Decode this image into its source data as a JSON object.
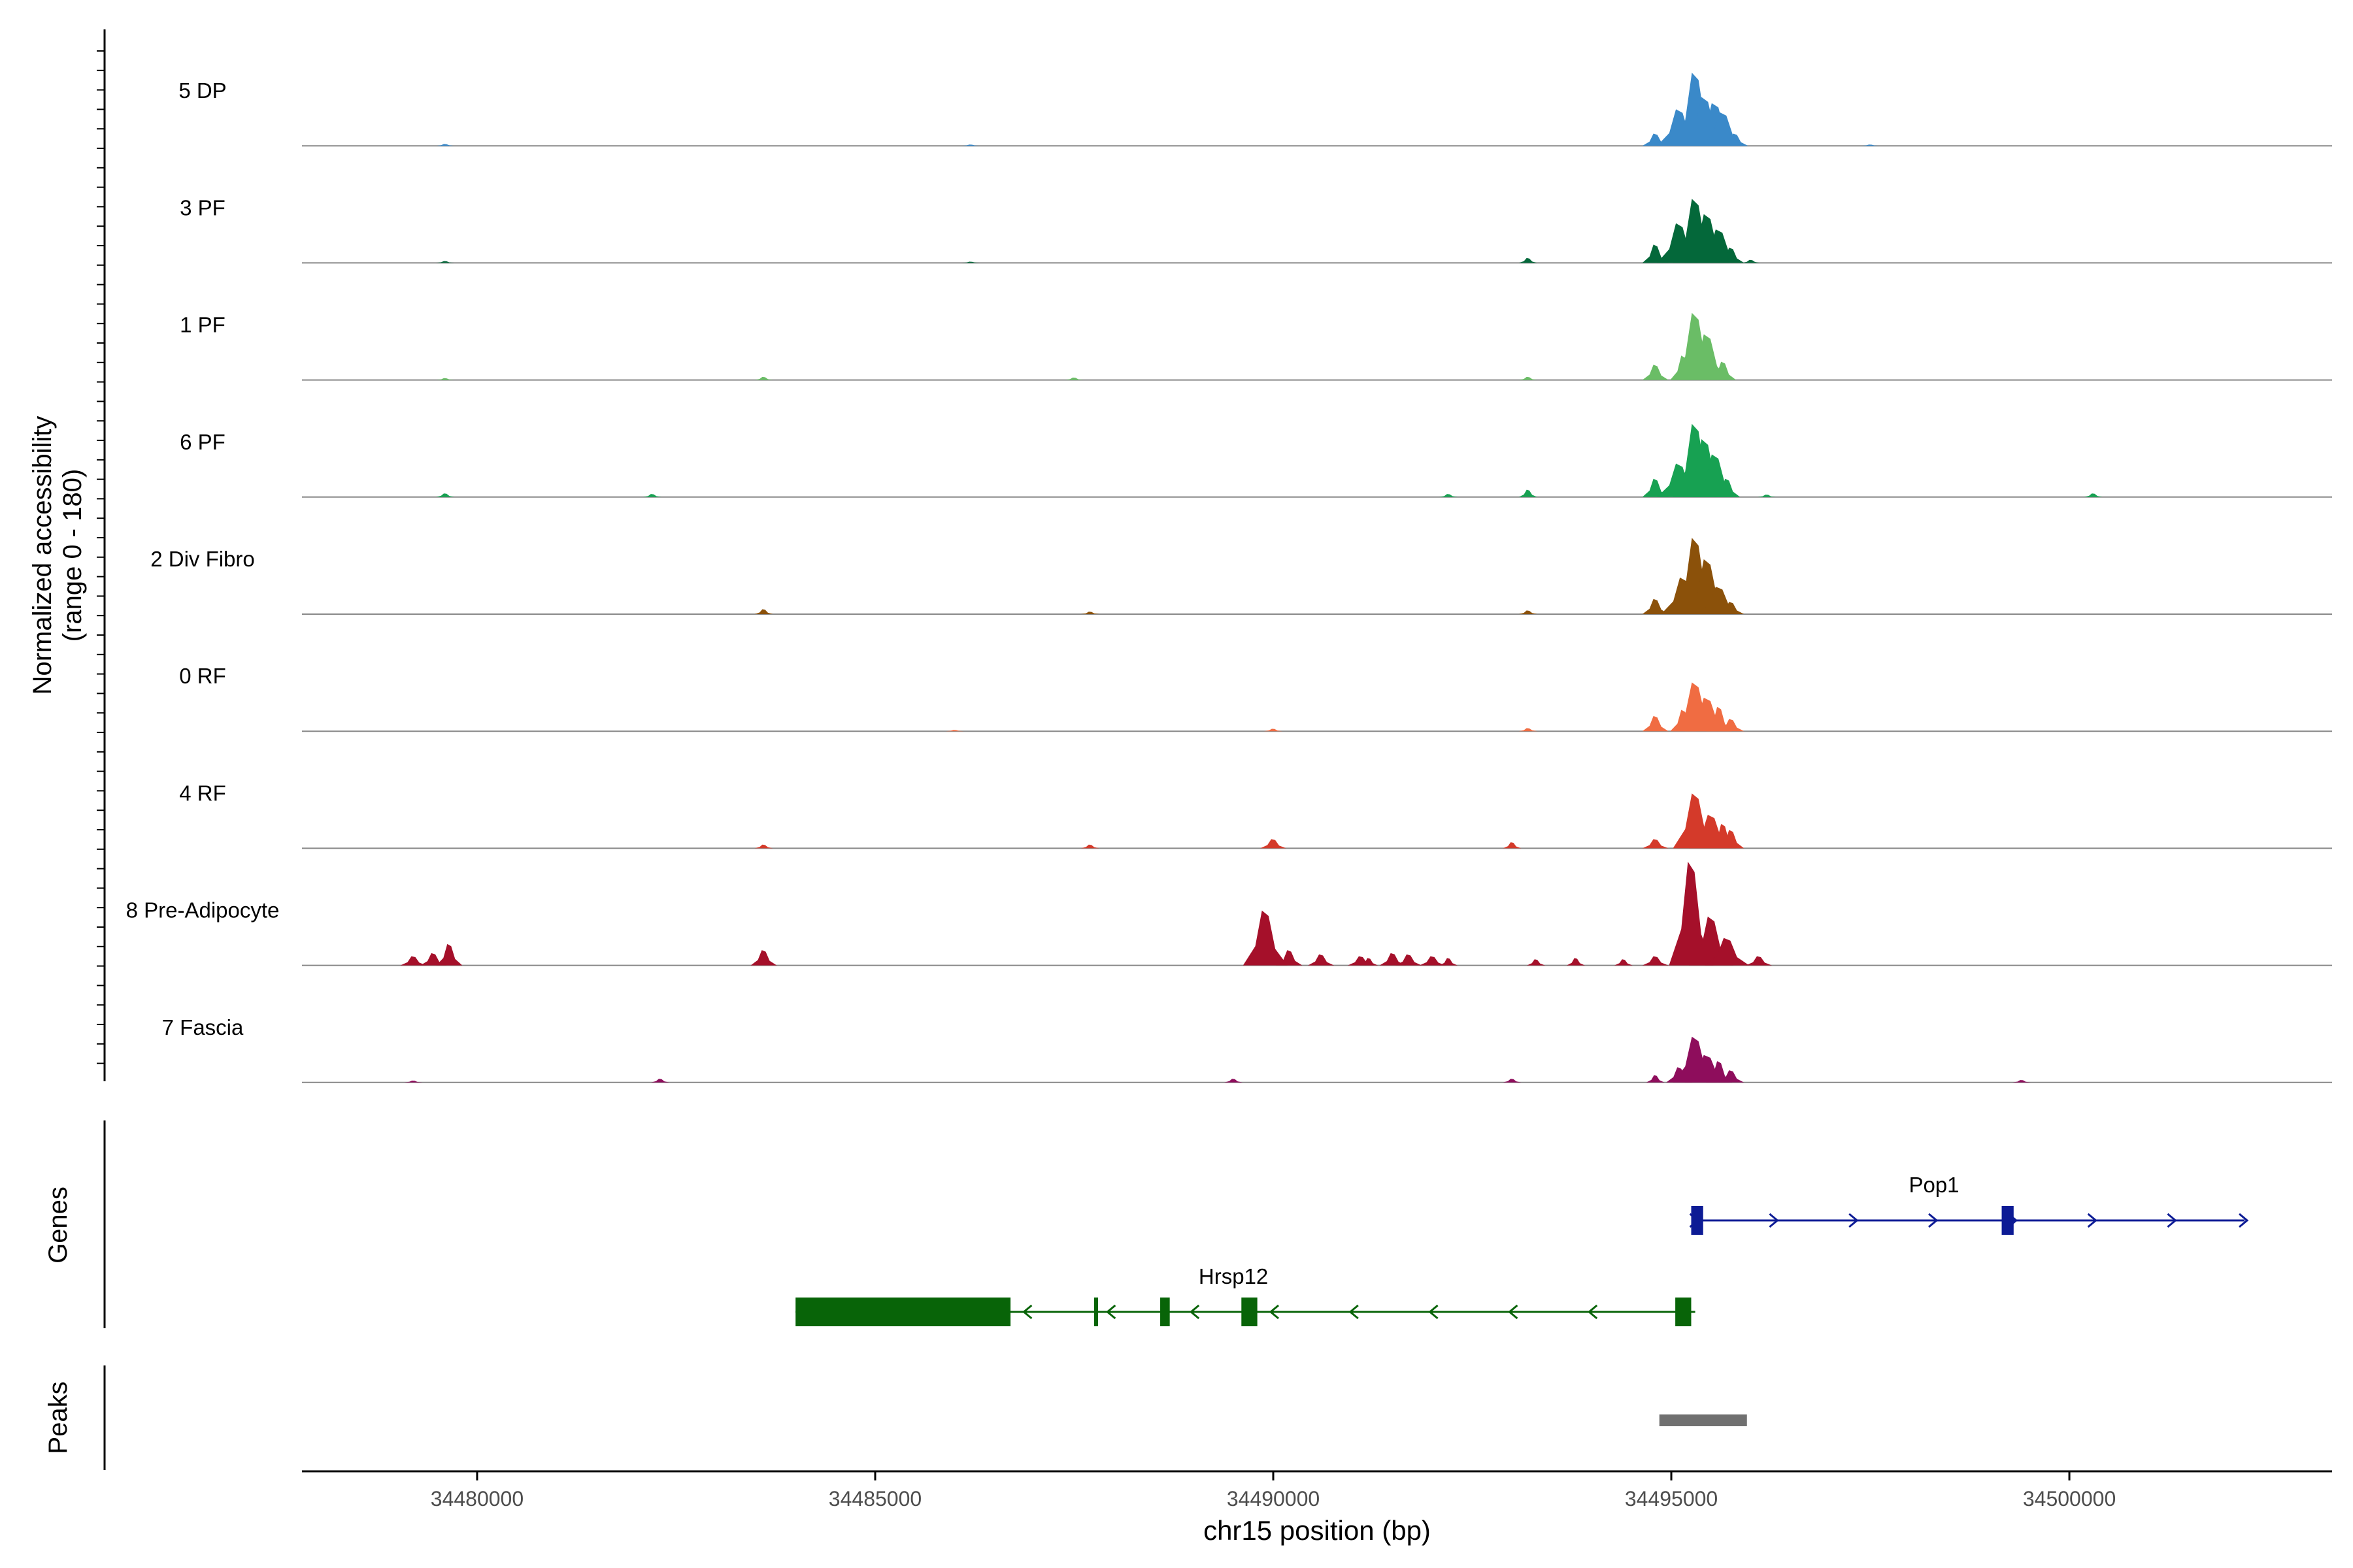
{
  "chart_data": {
    "type": "area",
    "title": "",
    "ylabel_line1": "Normalized accessibility",
    "ylabel_line2": "(range 0 - 180)",
    "genes_label": "Genes",
    "peaks_label": "Peaks",
    "xlabel": "chr15 position (bp)",
    "xlim": [
      34477800,
      34503300
    ],
    "ylim": [
      0,
      180
    ],
    "xticks": [
      34480000,
      34485000,
      34490000,
      34495000,
      34500000
    ],
    "xtick_labels": [
      "34480000",
      "34485000",
      "34490000",
      "34495000",
      "34500000"
    ],
    "series": [
      {
        "name": "5 DP",
        "color": "#3a89c9",
        "peaks": [
          [
            34494800,
            20
          ],
          [
            34495100,
            60
          ],
          [
            34495300,
            120
          ],
          [
            34495420,
            80
          ],
          [
            34495550,
            70
          ],
          [
            34495650,
            55
          ],
          [
            34495800,
            20
          ],
          [
            34479600,
            3
          ],
          [
            34486200,
            2
          ],
          [
            34497500,
            2
          ]
        ]
      },
      {
        "name": "3 PF",
        "color": "#04683a",
        "peaks": [
          [
            34494800,
            30
          ],
          [
            34495100,
            65
          ],
          [
            34495300,
            105
          ],
          [
            34495450,
            80
          ],
          [
            34495600,
            55
          ],
          [
            34495750,
            25
          ],
          [
            34493200,
            8
          ],
          [
            34496000,
            5
          ],
          [
            34479600,
            3
          ],
          [
            34486200,
            2
          ]
        ]
      },
      {
        "name": "1 PF",
        "color": "#6abd66",
        "peaks": [
          [
            34494800,
            25
          ],
          [
            34495150,
            40
          ],
          [
            34495300,
            110
          ],
          [
            34495450,
            75
          ],
          [
            34495650,
            30
          ],
          [
            34493200,
            5
          ],
          [
            34483600,
            5
          ],
          [
            34479600,
            3
          ],
          [
            34487500,
            4
          ]
        ]
      },
      {
        "name": "6 PF",
        "color": "#17a152",
        "peaks": [
          [
            34494800,
            30
          ],
          [
            34495100,
            55
          ],
          [
            34495300,
            120
          ],
          [
            34495420,
            95
          ],
          [
            34495550,
            70
          ],
          [
            34495700,
            30
          ],
          [
            34493200,
            12
          ],
          [
            34479600,
            6
          ],
          [
            34500300,
            6
          ],
          [
            34492200,
            5
          ],
          [
            34482200,
            5
          ],
          [
            34496200,
            4
          ]
        ]
      },
      {
        "name": "2 Div Fibro",
        "color": "#8b510a",
        "peaks": [
          [
            34494800,
            25
          ],
          [
            34495150,
            60
          ],
          [
            34495300,
            125
          ],
          [
            34495450,
            90
          ],
          [
            34495600,
            45
          ],
          [
            34495750,
            20
          ],
          [
            34483600,
            8
          ],
          [
            34493200,
            6
          ],
          [
            34487700,
            4
          ]
        ]
      },
      {
        "name": "0 RF",
        "color": "#f06c42",
        "peaks": [
          [
            34494800,
            25
          ],
          [
            34495150,
            35
          ],
          [
            34495300,
            80
          ],
          [
            34495450,
            55
          ],
          [
            34495600,
            40
          ],
          [
            34495750,
            20
          ],
          [
            34493200,
            5
          ],
          [
            34490000,
            4
          ],
          [
            34486000,
            2
          ]
        ]
      },
      {
        "name": "4 RF",
        "color": "#d43a2a",
        "peaks": [
          [
            34494800,
            15
          ],
          [
            34495300,
            90
          ],
          [
            34495500,
            55
          ],
          [
            34495650,
            40
          ],
          [
            34495750,
            30
          ],
          [
            34490000,
            15
          ],
          [
            34493000,
            10
          ],
          [
            34483600,
            6
          ],
          [
            34487700,
            6
          ]
        ]
      },
      {
        "name": "8 Pre-Adipocyte",
        "color": "#a5102a",
        "peaks": [
          [
            34479200,
            15
          ],
          [
            34479450,
            20
          ],
          [
            34479650,
            35
          ],
          [
            34483600,
            25
          ],
          [
            34489900,
            90
          ],
          [
            34490200,
            25
          ],
          [
            34490600,
            18
          ],
          [
            34491100,
            15
          ],
          [
            34491200,
            12
          ],
          [
            34491500,
            20
          ],
          [
            34491700,
            18
          ],
          [
            34492000,
            15
          ],
          [
            34492200,
            12
          ],
          [
            34493300,
            10
          ],
          [
            34493800,
            12
          ],
          [
            34494400,
            10
          ],
          [
            34494800,
            15
          ],
          [
            34495250,
            170
          ],
          [
            34495500,
            80
          ],
          [
            34495700,
            45
          ],
          [
            34496100,
            15
          ]
        ]
      },
      {
        "name": "7 Fascia",
        "color": "#8e0d5c",
        "peaks": [
          [
            34494800,
            12
          ],
          [
            34495100,
            25
          ],
          [
            34495300,
            75
          ],
          [
            34495450,
            45
          ],
          [
            34495600,
            35
          ],
          [
            34495750,
            20
          ],
          [
            34482300,
            6
          ],
          [
            34489500,
            6
          ],
          [
            34493000,
            6
          ],
          [
            34499400,
            4
          ],
          [
            34479200,
            3
          ]
        ]
      }
    ],
    "genes": [
      {
        "name": "Pop1",
        "strand": "+",
        "color": "#0d1b95",
        "start": 34495300,
        "end": 34502200,
        "exons": [
          [
            34495250,
            34495400
          ],
          [
            34499150,
            34499300
          ]
        ],
        "arrows": [
          34495300,
          34496300,
          34497300,
          34498300,
          34499300,
          34500300,
          34501300,
          34502200
        ]
      },
      {
        "name": "Hrsp12",
        "strand": "-",
        "color": "#086408",
        "start": 34484000,
        "end": 34495300,
        "exons": [
          [
            34484000,
            34486700
          ],
          [
            34487750,
            34487800
          ],
          [
            34488580,
            34488700
          ],
          [
            34489600,
            34489800
          ],
          [
            34495050,
            34495250
          ]
        ],
        "arrows": [
          34486900,
          34487950,
          34489000,
          34490000,
          34491000,
          34492000,
          34493000,
          34494000
        ]
      }
    ],
    "peaks_track": [
      [
        34494850,
        34495950
      ]
    ]
  }
}
